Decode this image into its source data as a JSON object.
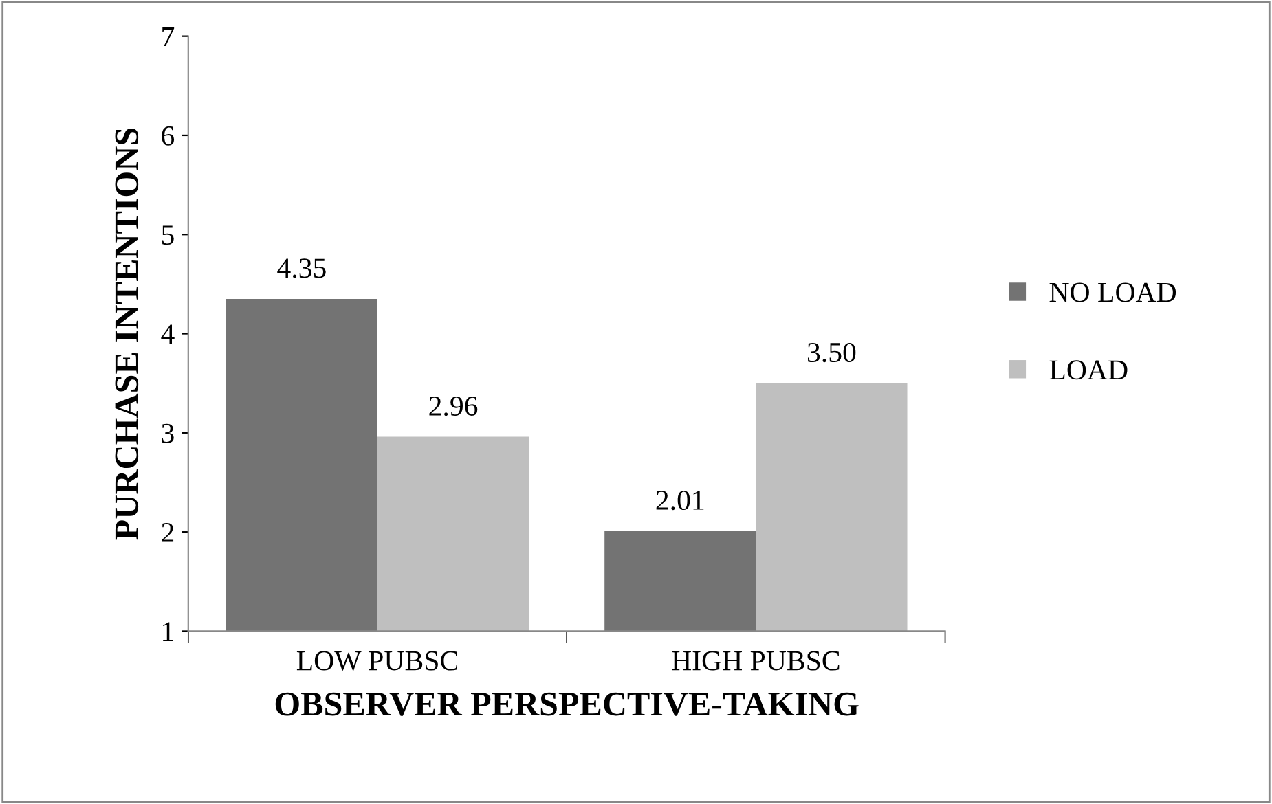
{
  "chart_data": {
    "type": "bar",
    "xlabel": "OBSERVER PERSPECTIVE-TAKING",
    "ylabel": "PURCHASE INTENTIONS",
    "categories": [
      "LOW PUBSC",
      "HIGH PUBSC"
    ],
    "series": [
      {
        "name": "NO LOAD",
        "color": "#737373",
        "values": [
          4.35,
          2.01
        ],
        "value_labels": [
          "4.35",
          "2.01"
        ]
      },
      {
        "name": "LOAD",
        "color": "#bfbfbf",
        "values": [
          2.96,
          3.5
        ],
        "value_labels": [
          "2.96",
          "3.50"
        ]
      }
    ],
    "ylim": [
      1,
      7
    ],
    "yticks": [
      1,
      2,
      3,
      4,
      5,
      6,
      7
    ],
    "grid": false,
    "legend": "right"
  }
}
